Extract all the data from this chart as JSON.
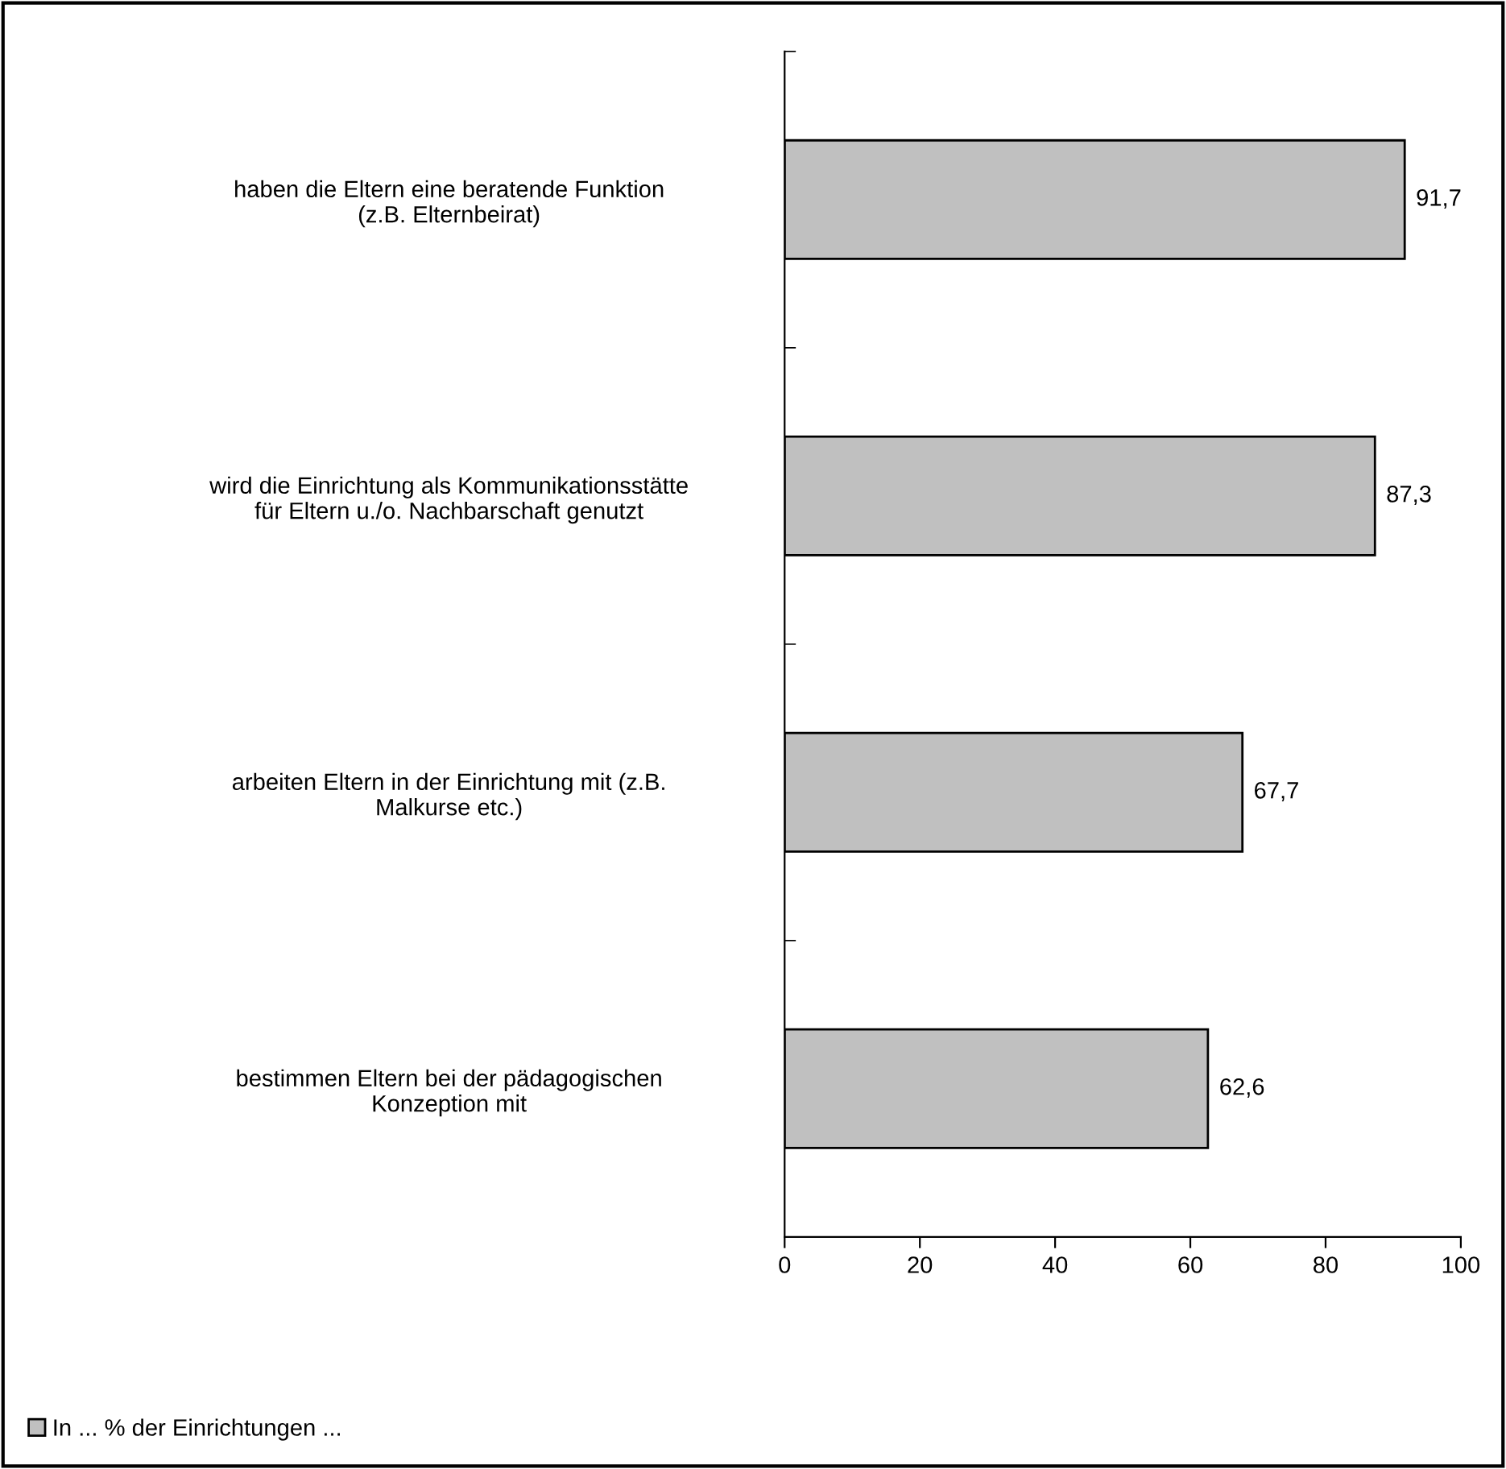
{
  "chart_data": {
    "type": "bar",
    "orientation": "horizontal",
    "categories": [
      "haben die Eltern eine beratende Funktion\n(z.B. Elternbeirat)",
      "wird die Einrichtung als Kommunikationsstätte\nfür Eltern u./o. Nachbarschaft genutzt",
      "arbeiten Eltern in der Einrichtung mit (z.B.\nMalkurse etc.)",
      "bestimmen Eltern bei der pädagogischen\nKonzeption mit"
    ],
    "series": [
      {
        "name": "In ... % der Einrichtungen ...",
        "color": "#c0c0c0",
        "values": [
          91.7,
          87.3,
          67.7,
          62.6
        ],
        "value_labels": [
          "91,7",
          "87,3",
          "67,7",
          "62,6"
        ]
      }
    ],
    "xlim": [
      0,
      100
    ],
    "xticks": [
      0,
      20,
      40,
      60,
      80,
      100
    ],
    "grid": false,
    "legend": "bottom left"
  }
}
